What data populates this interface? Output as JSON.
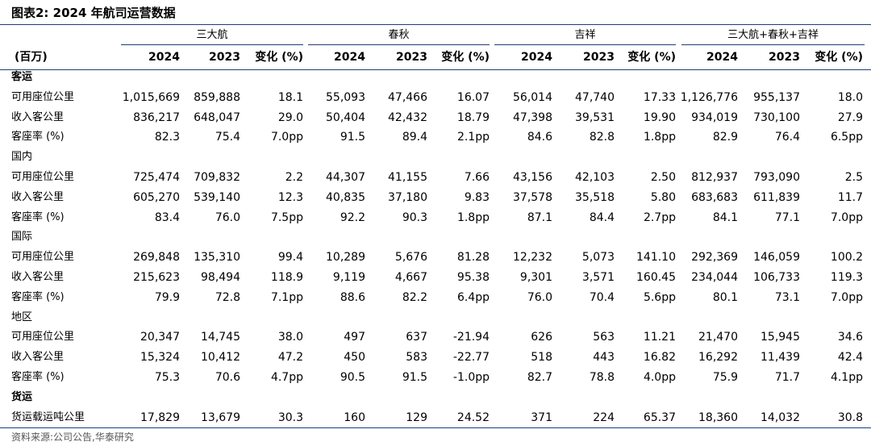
{
  "title": "图表2:  2024 年航司运营数据",
  "unit_label": "(百万)",
  "groups": [
    "三大航",
    "春秋",
    "吉祥",
    "三大航+春秋+吉祥"
  ],
  "subheaders": [
    "2024",
    "2023",
    "变化 (%)"
  ],
  "rows": [
    {
      "label": "客运",
      "type": "section_bold",
      "values": []
    },
    {
      "label": "可用座位公里",
      "type": "data",
      "values": [
        "1,015,669",
        "859,888",
        "18.1",
        "55,093",
        "47,466",
        "16.07",
        "56,014",
        "47,740",
        "17.33",
        "1,126,776",
        "955,137",
        "18.0"
      ]
    },
    {
      "label": "收入客公里",
      "type": "data",
      "values": [
        "836,217",
        "648,047",
        "29.0",
        "50,404",
        "42,432",
        "18.79",
        "47,398",
        "39,531",
        "19.90",
        "934,019",
        "730,100",
        "27.9"
      ]
    },
    {
      "label": "客座率 (%)",
      "type": "data",
      "values": [
        "82.3",
        "75.4",
        "7.0pp",
        "91.5",
        "89.4",
        "2.1pp",
        "84.6",
        "82.8",
        "1.8pp",
        "82.9",
        "76.4",
        "6.5pp"
      ]
    },
    {
      "label": "国内",
      "type": "section",
      "values": []
    },
    {
      "label": "可用座位公里",
      "type": "data",
      "values": [
        "725,474",
        "709,832",
        "2.2",
        "44,307",
        "41,155",
        "7.66",
        "43,156",
        "42,103",
        "2.50",
        "812,937",
        "793,090",
        "2.5"
      ]
    },
    {
      "label": "收入客公里",
      "type": "data",
      "values": [
        "605,270",
        "539,140",
        "12.3",
        "40,835",
        "37,180",
        "9.83",
        "37,578",
        "35,518",
        "5.80",
        "683,683",
        "611,839",
        "11.7"
      ]
    },
    {
      "label": "客座率 (%)",
      "type": "data",
      "values": [
        "83.4",
        "76.0",
        "7.5pp",
        "92.2",
        "90.3",
        "1.8pp",
        "87.1",
        "84.4",
        "2.7pp",
        "84.1",
        "77.1",
        "7.0pp"
      ]
    },
    {
      "label": "国际",
      "type": "section",
      "values": []
    },
    {
      "label": "可用座位公里",
      "type": "data",
      "values": [
        "269,848",
        "135,310",
        "99.4",
        "10,289",
        "5,676",
        "81.28",
        "12,232",
        "5,073",
        "141.10",
        "292,369",
        "146,059",
        "100.2"
      ]
    },
    {
      "label": "收入客公里",
      "type": "data",
      "values": [
        "215,623",
        "98,494",
        "118.9",
        "9,119",
        "4,667",
        "95.38",
        "9,301",
        "3,571",
        "160.45",
        "234,044",
        "106,733",
        "119.3"
      ]
    },
    {
      "label": "客座率 (%)",
      "type": "data",
      "values": [
        "79.9",
        "72.8",
        "7.1pp",
        "88.6",
        "82.2",
        "6.4pp",
        "76.0",
        "70.4",
        "5.6pp",
        "80.1",
        "73.1",
        "7.0pp"
      ]
    },
    {
      "label": "地区",
      "type": "section",
      "values": []
    },
    {
      "label": "可用座位公里",
      "type": "data",
      "values": [
        "20,347",
        "14,745",
        "38.0",
        "497",
        "637",
        "-21.94",
        "626",
        "563",
        "11.21",
        "21,470",
        "15,945",
        "34.6"
      ]
    },
    {
      "label": "收入客公里",
      "type": "data",
      "values": [
        "15,324",
        "10,412",
        "47.2",
        "450",
        "583",
        "-22.77",
        "518",
        "443",
        "16.82",
        "16,292",
        "11,439",
        "42.4"
      ]
    },
    {
      "label": "客座率 (%)",
      "type": "data",
      "values": [
        "75.3",
        "70.6",
        "4.7pp",
        "90.5",
        "91.5",
        "-1.0pp",
        "82.7",
        "78.8",
        "4.0pp",
        "75.9",
        "71.7",
        "4.1pp"
      ]
    },
    {
      "label": "货运",
      "type": "section_bold",
      "values": []
    },
    {
      "label": "货运载运吨公里",
      "type": "data",
      "values": [
        "17,829",
        "13,679",
        "30.3",
        "160",
        "129",
        "24.52",
        "371",
        "224",
        "65.37",
        "18,360",
        "14,032",
        "30.8"
      ]
    }
  ],
  "source": "资料来源:公司公告,华泰研究",
  "colors": {
    "rule": "#1f3d7a",
    "source_text": "#555555"
  }
}
